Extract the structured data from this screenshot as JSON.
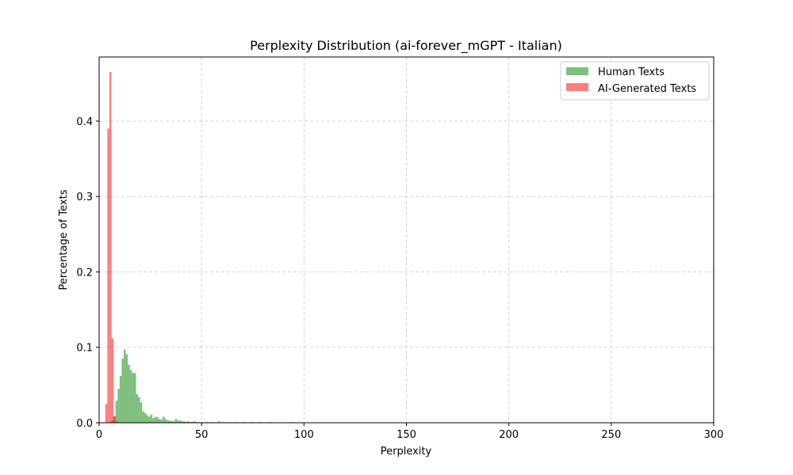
{
  "chart_data": {
    "type": "histogram",
    "title": "Perplexity Distribution (ai-forever_mGPT - Italian)",
    "xlabel": "Perplexity",
    "ylabel": "Percentage of Texts",
    "xlim": [
      0,
      300
    ],
    "ylim": [
      0,
      0.485
    ],
    "xticks": [
      0,
      50,
      100,
      150,
      200,
      250,
      300
    ],
    "yticks": [
      0.0,
      0.1,
      0.2,
      0.3,
      0.4
    ],
    "grid": true,
    "grid_style": "dashed",
    "legend_position": "top-right",
    "bin_width": 1.0,
    "series": [
      {
        "name": "Human Texts",
        "color": "#008000",
        "opacity": 0.5,
        "bins": [
          [
            6,
            0.003
          ],
          [
            7,
            0.009
          ],
          [
            8,
            0.029
          ],
          [
            9,
            0.045
          ],
          [
            10,
            0.062
          ],
          [
            11,
            0.085
          ],
          [
            12,
            0.097
          ],
          [
            13,
            0.091
          ],
          [
            14,
            0.077
          ],
          [
            15,
            0.07
          ],
          [
            16,
            0.066
          ],
          [
            17,
            0.066
          ],
          [
            18,
            0.038
          ],
          [
            19,
            0.034
          ],
          [
            20,
            0.027
          ],
          [
            21,
            0.015
          ],
          [
            22,
            0.013
          ],
          [
            23,
            0.01
          ],
          [
            24,
            0.008
          ],
          [
            25,
            0.011
          ],
          [
            26,
            0.006
          ],
          [
            27,
            0.008
          ],
          [
            28,
            0.007
          ],
          [
            29,
            0.005
          ],
          [
            30,
            0.004
          ],
          [
            31,
            0.008
          ],
          [
            32,
            0.005
          ],
          [
            33,
            0.003
          ],
          [
            34,
            0.003
          ],
          [
            35,
            0.002
          ],
          [
            36,
            0.002
          ],
          [
            37,
            0.005
          ],
          [
            38,
            0.003
          ],
          [
            39,
            0.003
          ],
          [
            40,
            0.002
          ],
          [
            41,
            0.002
          ],
          [
            42,
            0.001
          ],
          [
            43,
            0.002
          ],
          [
            44,
            0.001
          ],
          [
            45,
            0.001
          ],
          [
            46,
            0.002
          ],
          [
            47,
            0.001
          ],
          [
            48,
            0.001
          ],
          [
            50,
            0.001
          ],
          [
            52,
            0.001
          ],
          [
            55,
            0.001
          ],
          [
            58,
            0.002
          ],
          [
            60,
            0.001
          ],
          [
            63,
            0.001
          ],
          [
            66,
            0.001
          ],
          [
            70,
            0.001
          ],
          [
            74,
            0.001
          ],
          [
            78,
            0.001
          ],
          [
            83,
            0.001
          ],
          [
            94,
            0.001
          ]
        ]
      },
      {
        "name": "AI-Generated Texts",
        "color": "#ff0000",
        "opacity": 0.5,
        "bins": [
          [
            3,
            0.025
          ],
          [
            4,
            0.39
          ],
          [
            5,
            0.465
          ],
          [
            6,
            0.112
          ],
          [
            7,
            0.008
          ],
          [
            8,
            0.002
          ]
        ]
      }
    ]
  }
}
